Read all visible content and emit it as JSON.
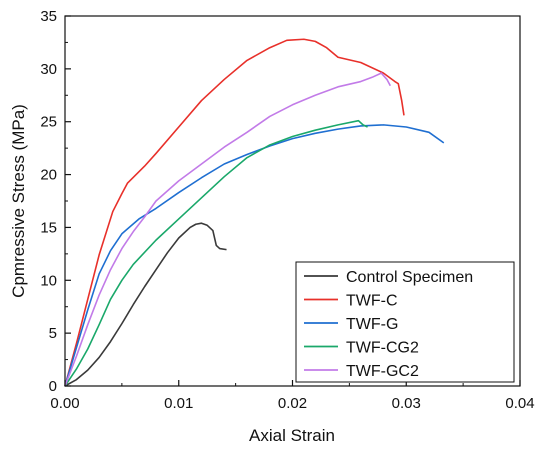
{
  "chart_data": {
    "type": "line",
    "title": "",
    "xlabel": "Axial Strain",
    "ylabel": "Cpmressive Stress (MPa)",
    "xlim": [
      0,
      0.04
    ],
    "ylim": [
      0,
      35
    ],
    "xticks": [
      "0.00",
      "0.01",
      "0.02",
      "0.03",
      "0.04"
    ],
    "yticks": [
      "0",
      "5",
      "10",
      "15",
      "20",
      "25",
      "30",
      "35"
    ],
    "legend_position": "bottom-right",
    "grid": false,
    "series": [
      {
        "name": "Control Specimen",
        "color": "#3a3a3a",
        "points": [
          [
            0.0,
            0.0
          ],
          [
            0.001,
            0.6
          ],
          [
            0.002,
            1.5
          ],
          [
            0.003,
            2.7
          ],
          [
            0.004,
            4.2
          ],
          [
            0.005,
            5.9
          ],
          [
            0.006,
            7.7
          ],
          [
            0.007,
            9.4
          ],
          [
            0.008,
            11.0
          ],
          [
            0.009,
            12.6
          ],
          [
            0.01,
            14.0
          ],
          [
            0.011,
            15.0
          ],
          [
            0.0115,
            15.3
          ],
          [
            0.012,
            15.4
          ],
          [
            0.0125,
            15.2
          ],
          [
            0.013,
            14.7
          ],
          [
            0.0133,
            13.3
          ],
          [
            0.0136,
            13.0
          ],
          [
            0.0142,
            12.9
          ]
        ]
      },
      {
        "name": "TWF-C",
        "color": "#e8302a",
        "points": [
          [
            0.0,
            0.0
          ],
          [
            0.001,
            4.0
          ],
          [
            0.002,
            8.2
          ],
          [
            0.003,
            12.4
          ],
          [
            0.0042,
            16.5
          ],
          [
            0.005,
            18.2
          ],
          [
            0.0055,
            19.2
          ],
          [
            0.007,
            20.8
          ],
          [
            0.008,
            22.0
          ],
          [
            0.01,
            24.5
          ],
          [
            0.012,
            27.0
          ],
          [
            0.014,
            29.0
          ],
          [
            0.016,
            30.8
          ],
          [
            0.018,
            32.0
          ],
          [
            0.0195,
            32.7
          ],
          [
            0.021,
            32.8
          ],
          [
            0.022,
            32.6
          ],
          [
            0.023,
            32.0
          ],
          [
            0.024,
            31.1
          ],
          [
            0.026,
            30.6
          ],
          [
            0.028,
            29.6
          ],
          [
            0.029,
            28.8
          ],
          [
            0.0293,
            28.6
          ],
          [
            0.0296,
            27.0
          ],
          [
            0.0298,
            25.6
          ]
        ]
      },
      {
        "name": "TWF-G",
        "color": "#1f6fd1",
        "points": [
          [
            0.0,
            0.0
          ],
          [
            0.001,
            3.6
          ],
          [
            0.002,
            7.2
          ],
          [
            0.003,
            10.6
          ],
          [
            0.004,
            12.8
          ],
          [
            0.005,
            14.4
          ],
          [
            0.0065,
            15.8
          ],
          [
            0.008,
            16.8
          ],
          [
            0.01,
            18.3
          ],
          [
            0.012,
            19.7
          ],
          [
            0.014,
            21.0
          ],
          [
            0.016,
            21.9
          ],
          [
            0.018,
            22.7
          ],
          [
            0.02,
            23.4
          ],
          [
            0.022,
            23.9
          ],
          [
            0.024,
            24.3
          ],
          [
            0.026,
            24.6
          ],
          [
            0.028,
            24.7
          ],
          [
            0.03,
            24.5
          ],
          [
            0.032,
            24.0
          ],
          [
            0.0333,
            23.0
          ]
        ]
      },
      {
        "name": "TWF-CG2",
        "color": "#1aa86a",
        "points": [
          [
            0.0,
            0.0
          ],
          [
            0.001,
            1.6
          ],
          [
            0.002,
            3.5
          ],
          [
            0.003,
            5.8
          ],
          [
            0.004,
            8.2
          ],
          [
            0.005,
            10.0
          ],
          [
            0.006,
            11.5
          ],
          [
            0.008,
            13.8
          ],
          [
            0.01,
            15.8
          ],
          [
            0.012,
            17.8
          ],
          [
            0.014,
            19.8
          ],
          [
            0.016,
            21.6
          ],
          [
            0.018,
            22.8
          ],
          [
            0.02,
            23.6
          ],
          [
            0.022,
            24.2
          ],
          [
            0.024,
            24.7
          ],
          [
            0.0258,
            25.1
          ],
          [
            0.0262,
            24.7
          ],
          [
            0.0266,
            24.5
          ]
        ]
      },
      {
        "name": "TWF-GC2",
        "color": "#c27be8",
        "points": [
          [
            0.0,
            0.0
          ],
          [
            0.001,
            2.8
          ],
          [
            0.002,
            5.8
          ],
          [
            0.003,
            8.6
          ],
          [
            0.004,
            11.0
          ],
          [
            0.005,
            13.0
          ],
          [
            0.006,
            14.6
          ],
          [
            0.007,
            16.0
          ],
          [
            0.008,
            17.5
          ],
          [
            0.01,
            19.4
          ],
          [
            0.012,
            21.0
          ],
          [
            0.014,
            22.6
          ],
          [
            0.016,
            24.0
          ],
          [
            0.018,
            25.5
          ],
          [
            0.02,
            26.6
          ],
          [
            0.022,
            27.5
          ],
          [
            0.024,
            28.3
          ],
          [
            0.026,
            28.8
          ],
          [
            0.027,
            29.2
          ],
          [
            0.0278,
            29.6
          ],
          [
            0.0283,
            29.0
          ],
          [
            0.0286,
            28.4
          ]
        ]
      }
    ]
  }
}
